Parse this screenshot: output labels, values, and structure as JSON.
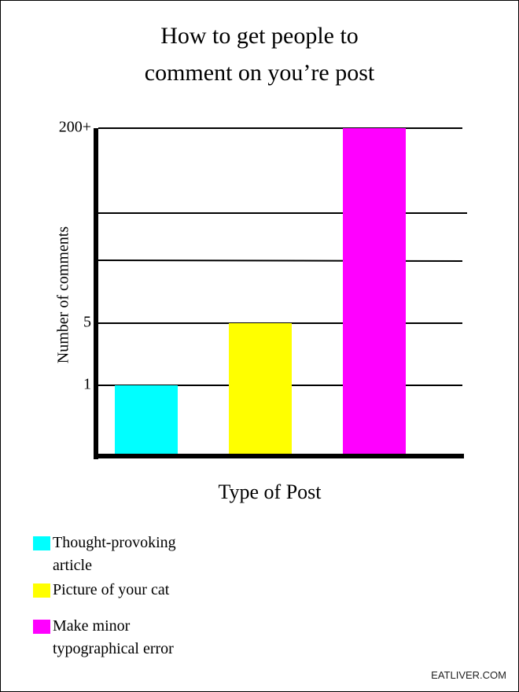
{
  "chart_data": {
    "type": "bar",
    "title": [
      "How to get people to",
      "comment on you’re post"
    ],
    "x_label": "Type of Post",
    "y_label": "Number of comments",
    "categories": [
      "Thought-provoking article",
      "Picture of your cat",
      "Make minor typographical error"
    ],
    "values": [
      1,
      5,
      200
    ],
    "colors": [
      "#00ffff",
      "#ffff00",
      "#ff00ff"
    ],
    "ylim": [
      0,
      200
    ],
    "yticks": [
      1,
      5,
      {
        "value": 200,
        "label": "200+"
      }
    ],
    "grid": true,
    "credit": "EATLIVER.COM"
  }
}
